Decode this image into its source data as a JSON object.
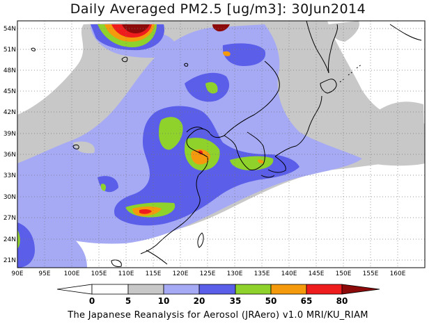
{
  "title": "Daily Averaged PM2.5 [ug/m3]: 30Jun2014",
  "footer": "The Japanese Reanalysis for Aerosol (JRAero) v1.0 MRI/KU_RIAM",
  "map": {
    "lon_ticks": [
      "90E",
      "95E",
      "100E",
      "105E",
      "110E",
      "115E",
      "120E",
      "125E",
      "130E",
      "135E",
      "140E",
      "145E",
      "150E",
      "155E",
      "160E"
    ],
    "lat_ticks": [
      "54N",
      "51N",
      "48N",
      "45N",
      "42N",
      "39N",
      "36N",
      "33N",
      "30N",
      "27N",
      "24N",
      "21N"
    ],
    "grid": "dotted",
    "region": "East Asia"
  },
  "colorbar": {
    "labels": [
      "0",
      "5",
      "10",
      "20",
      "35",
      "50",
      "65",
      "80"
    ],
    "colors": [
      "#ffffff",
      "#c8c8c8",
      "#a6aaf5",
      "#5a5ee8",
      "#8fd22c",
      "#f59a0c",
      "#ee1c1c",
      "#8c0a0a"
    ]
  }
}
